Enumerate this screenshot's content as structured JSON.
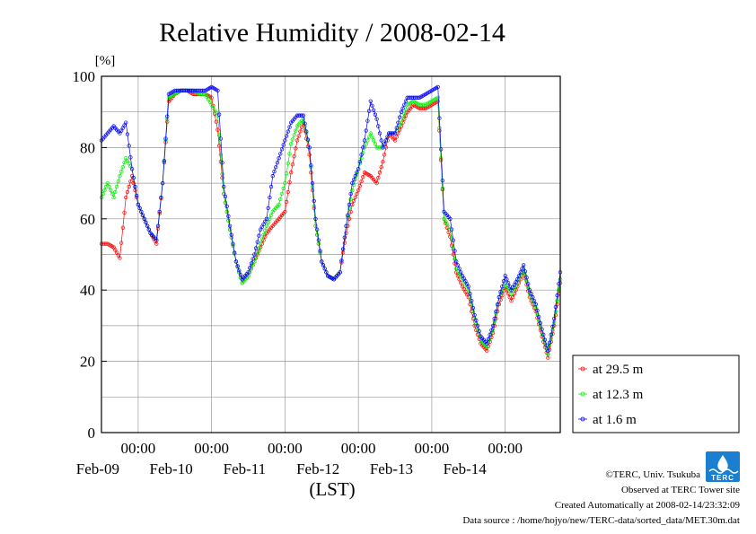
{
  "chart_data": {
    "type": "line",
    "title": "Relative Humidity / 2008-02-14",
    "ylabel": "[%]",
    "xlabel": "(LST)",
    "ylim": [
      0,
      100
    ],
    "yticks": [
      0,
      20,
      40,
      60,
      80,
      100
    ],
    "grid": true,
    "xlim": [
      "2008-02-08 12:00",
      "2008-02-14 18:00"
    ],
    "xticks": [
      {
        "time": "2008-02-09 00:00",
        "top": "00:00",
        "bottom": "Feb-09"
      },
      {
        "time": "2008-02-10 00:00",
        "top": "00:00",
        "bottom": "Feb-10"
      },
      {
        "time": "2008-02-11 00:00",
        "top": "00:00",
        "bottom": "Feb-11"
      },
      {
        "time": "2008-02-12 00:00",
        "top": "00:00",
        "bottom": "Feb-12"
      },
      {
        "time": "2008-02-13 00:00",
        "top": "00:00",
        "bottom": "Feb-13"
      },
      {
        "time": "2008-02-14 00:00",
        "top": "00:00",
        "bottom": "Feb-14"
      }
    ],
    "legend_position": "right",
    "series": [
      {
        "name": "at 29.5 m",
        "color": "#ff0000",
        "x": [
          "2008-02-08 12:00",
          "2008-02-08 14:00",
          "2008-02-08 16:00",
          "2008-02-08 18:00",
          "2008-02-08 20:00",
          "2008-02-08 22:00",
          "2008-02-09 00:00",
          "2008-02-09 02:00",
          "2008-02-09 04:00",
          "2008-02-09 06:00",
          "2008-02-09 08:00",
          "2008-02-09 10:00",
          "2008-02-09 12:00",
          "2008-02-09 14:00",
          "2008-02-09 16:00",
          "2008-02-09 18:00",
          "2008-02-09 20:00",
          "2008-02-09 22:00",
          "2008-02-10 00:00",
          "2008-02-10 02:00",
          "2008-02-10 04:00",
          "2008-02-10 06:00",
          "2008-02-10 08:00",
          "2008-02-10 10:00",
          "2008-02-10 12:00",
          "2008-02-10 14:00",
          "2008-02-10 16:00",
          "2008-02-10 18:00",
          "2008-02-10 20:00",
          "2008-02-10 22:00",
          "2008-02-11 00:00",
          "2008-02-11 02:00",
          "2008-02-11 04:00",
          "2008-02-11 06:00",
          "2008-02-11 08:00",
          "2008-02-11 10:00",
          "2008-02-11 12:00",
          "2008-02-11 14:00",
          "2008-02-11 16:00",
          "2008-02-11 18:00",
          "2008-02-11 20:00",
          "2008-02-11 22:00",
          "2008-02-12 00:00",
          "2008-02-12 02:00",
          "2008-02-12 04:00",
          "2008-02-12 06:00",
          "2008-02-12 08:00",
          "2008-02-12 10:00",
          "2008-02-12 12:00",
          "2008-02-12 14:00",
          "2008-02-12 16:00",
          "2008-02-12 18:00",
          "2008-02-12 20:00",
          "2008-02-12 22:00",
          "2008-02-13 00:00",
          "2008-02-13 02:00",
          "2008-02-13 04:00",
          "2008-02-13 06:00",
          "2008-02-13 08:00",
          "2008-02-13 10:00",
          "2008-02-13 12:00",
          "2008-02-13 14:00",
          "2008-02-13 16:00",
          "2008-02-13 18:00",
          "2008-02-13 20:00",
          "2008-02-13 22:00",
          "2008-02-14 00:00",
          "2008-02-14 02:00",
          "2008-02-14 04:00",
          "2008-02-14 06:00",
          "2008-02-14 08:00",
          "2008-02-14 10:00",
          "2008-02-14 12:00",
          "2008-02-14 14:00",
          "2008-02-14 16:00",
          "2008-02-14 18:00"
        ],
        "values": [
          53,
          53,
          52,
          49,
          66,
          72,
          64,
          60,
          56,
          53,
          70,
          93,
          95,
          96,
          96,
          95,
          95,
          95,
          94,
          85,
          67,
          57,
          48,
          42,
          44,
          48,
          52,
          56,
          58,
          60,
          62,
          73,
          82,
          87,
          78,
          58,
          48,
          44,
          43,
          45,
          56,
          64,
          68,
          73,
          72,
          70,
          76,
          84,
          82,
          86,
          90,
          92,
          91,
          91,
          92,
          93,
          60,
          55,
          45,
          41,
          38,
          30,
          25,
          23,
          28,
          36,
          41,
          37,
          41,
          45,
          38,
          34,
          27,
          21,
          30,
          42
        ]
      },
      {
        "name": "at 12.3 m",
        "color": "#00ee00",
        "x": [
          "2008-02-08 12:00",
          "2008-02-08 14:00",
          "2008-02-08 16:00",
          "2008-02-08 18:00",
          "2008-02-08 20:00",
          "2008-02-08 22:00",
          "2008-02-09 00:00",
          "2008-02-09 02:00",
          "2008-02-09 04:00",
          "2008-02-09 06:00",
          "2008-02-09 08:00",
          "2008-02-09 10:00",
          "2008-02-09 12:00",
          "2008-02-09 14:00",
          "2008-02-09 16:00",
          "2008-02-09 18:00",
          "2008-02-09 20:00",
          "2008-02-09 22:00",
          "2008-02-10 00:00",
          "2008-02-10 02:00",
          "2008-02-10 04:00",
          "2008-02-10 06:00",
          "2008-02-10 08:00",
          "2008-02-10 10:00",
          "2008-02-10 12:00",
          "2008-02-10 14:00",
          "2008-02-10 16:00",
          "2008-02-10 18:00",
          "2008-02-10 20:00",
          "2008-02-10 22:00",
          "2008-02-11 00:00",
          "2008-02-11 02:00",
          "2008-02-11 04:00",
          "2008-02-11 06:00",
          "2008-02-11 08:00",
          "2008-02-11 10:00",
          "2008-02-11 12:00",
          "2008-02-11 14:00",
          "2008-02-11 16:00",
          "2008-02-11 18:00",
          "2008-02-11 20:00",
          "2008-02-11 22:00",
          "2008-02-12 00:00",
          "2008-02-12 02:00",
          "2008-02-12 04:00",
          "2008-02-12 06:00",
          "2008-02-12 08:00",
          "2008-02-12 10:00",
          "2008-02-12 12:00",
          "2008-02-12 14:00",
          "2008-02-12 16:00",
          "2008-02-12 18:00",
          "2008-02-12 20:00",
          "2008-02-12 22:00",
          "2008-02-13 00:00",
          "2008-02-13 02:00",
          "2008-02-13 04:00",
          "2008-02-13 06:00",
          "2008-02-13 08:00",
          "2008-02-13 10:00",
          "2008-02-13 12:00",
          "2008-02-13 14:00",
          "2008-02-13 16:00",
          "2008-02-13 18:00",
          "2008-02-13 20:00",
          "2008-02-13 22:00",
          "2008-02-14 00:00",
          "2008-02-14 02:00",
          "2008-02-14 04:00",
          "2008-02-14 06:00",
          "2008-02-14 08:00",
          "2008-02-14 10:00",
          "2008-02-14 12:00",
          "2008-02-14 14:00",
          "2008-02-14 16:00",
          "2008-02-14 18:00"
        ],
        "values": [
          66,
          70,
          66,
          72,
          77,
          74,
          64,
          60,
          56,
          54,
          70,
          94,
          95,
          96,
          96,
          96,
          95,
          95,
          92,
          89,
          67,
          57,
          48,
          42,
          44,
          48,
          53,
          58,
          62,
          64,
          70,
          81,
          86,
          88,
          80,
          58,
          48,
          44,
          43,
          45,
          58,
          68,
          74,
          80,
          84,
          80,
          80,
          84,
          84,
          87,
          92,
          93,
          92,
          92,
          93,
          94,
          60,
          57,
          46,
          43,
          40,
          32,
          26,
          24,
          29,
          38,
          42,
          39,
          42,
          46,
          39,
          35,
          28,
          22,
          31,
          43
        ]
      },
      {
        "name": "at 1.6 m",
        "color": "#0000ff",
        "x": [
          "2008-02-08 12:00",
          "2008-02-08 14:00",
          "2008-02-08 16:00",
          "2008-02-08 18:00",
          "2008-02-08 20:00",
          "2008-02-08 22:00",
          "2008-02-09 00:00",
          "2008-02-09 02:00",
          "2008-02-09 04:00",
          "2008-02-09 06:00",
          "2008-02-09 08:00",
          "2008-02-09 10:00",
          "2008-02-09 12:00",
          "2008-02-09 14:00",
          "2008-02-09 16:00",
          "2008-02-09 18:00",
          "2008-02-09 20:00",
          "2008-02-09 22:00",
          "2008-02-10 00:00",
          "2008-02-10 02:00",
          "2008-02-10 04:00",
          "2008-02-10 06:00",
          "2008-02-10 08:00",
          "2008-02-10 10:00",
          "2008-02-10 12:00",
          "2008-02-10 14:00",
          "2008-02-10 16:00",
          "2008-02-10 18:00",
          "2008-02-10 20:00",
          "2008-02-10 22:00",
          "2008-02-11 00:00",
          "2008-02-11 02:00",
          "2008-02-11 04:00",
          "2008-02-11 06:00",
          "2008-02-11 08:00",
          "2008-02-11 10:00",
          "2008-02-11 12:00",
          "2008-02-11 14:00",
          "2008-02-11 16:00",
          "2008-02-11 18:00",
          "2008-02-11 20:00",
          "2008-02-11 22:00",
          "2008-02-12 00:00",
          "2008-02-12 02:00",
          "2008-02-12 04:00",
          "2008-02-12 06:00",
          "2008-02-12 08:00",
          "2008-02-12 10:00",
          "2008-02-12 12:00",
          "2008-02-12 14:00",
          "2008-02-12 16:00",
          "2008-02-12 18:00",
          "2008-02-12 20:00",
          "2008-02-12 22:00",
          "2008-02-13 00:00",
          "2008-02-13 02:00",
          "2008-02-13 04:00",
          "2008-02-13 06:00",
          "2008-02-13 08:00",
          "2008-02-13 10:00",
          "2008-02-13 12:00",
          "2008-02-13 14:00",
          "2008-02-13 16:00",
          "2008-02-13 18:00",
          "2008-02-13 20:00",
          "2008-02-13 22:00",
          "2008-02-14 00:00",
          "2008-02-14 02:00",
          "2008-02-14 04:00",
          "2008-02-14 06:00",
          "2008-02-14 08:00",
          "2008-02-14 10:00",
          "2008-02-14 12:00",
          "2008-02-14 14:00",
          "2008-02-14 16:00",
          "2008-02-14 18:00"
        ],
        "values": [
          82,
          84,
          86,
          84,
          87,
          74,
          64,
          60,
          56,
          54,
          70,
          95,
          96,
          96,
          96,
          96,
          96,
          96,
          97,
          96,
          69,
          58,
          48,
          43,
          45,
          50,
          57,
          60,
          72,
          77,
          82,
          87,
          89,
          89,
          80,
          60,
          48,
          44,
          43,
          45,
          58,
          70,
          74,
          82,
          93,
          88,
          80,
          84,
          84,
          90,
          94,
          94,
          94,
          95,
          96,
          97,
          62,
          60,
          48,
          44,
          41,
          33,
          27,
          25,
          30,
          38,
          44,
          40,
          43,
          47,
          40,
          36,
          29,
          23,
          32,
          45
        ]
      }
    ]
  },
  "credits": {
    "copyright": "©TERC, Univ. Tsukuba",
    "observed": "Observed at TERC Tower site",
    "created": "Created Automatically at 2008-02-14/23:32:09",
    "source": "Data source : /home/hojyo/new/TERC-data/sorted_data/MET.30m.dat",
    "logo_text": "TERC"
  }
}
